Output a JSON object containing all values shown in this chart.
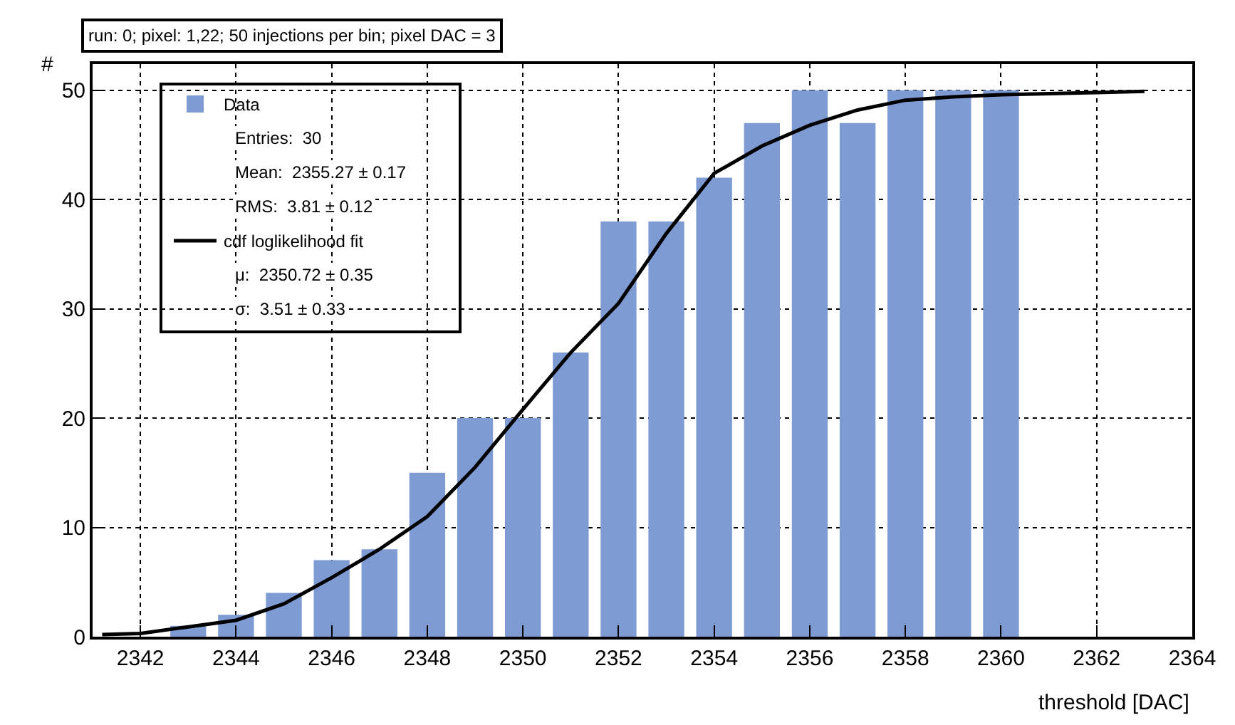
{
  "chart_data": {
    "type": "bar",
    "title": "run: 0; pixel: 1,22; 50 injections per bin; pixel DAC = 3",
    "xlabel": "threshold [DAC]",
    "ylabel": "#",
    "x": [
      2343,
      2344,
      2345,
      2346,
      2347,
      2348,
      2349,
      2350,
      2351,
      2352,
      2353,
      2354,
      2355,
      2356,
      2357,
      2358,
      2359,
      2360
    ],
    "series": [
      {
        "name": "Data",
        "color": "#7f9bd4",
        "values": [
          1,
          2,
          4,
          7,
          8,
          15,
          20,
          20,
          26,
          38,
          38,
          42,
          47,
          50,
          47,
          50,
          50,
          50
        ]
      },
      {
        "name": "cdf loglikelihood fit",
        "type": "line",
        "color": "#000000",
        "x": [
          2341.2,
          2342,
          2343,
          2344,
          2345,
          2346,
          2347,
          2348,
          2349,
          2350,
          2351,
          2352,
          2353,
          2354,
          2355,
          2356,
          2357,
          2358,
          2359,
          2360,
          2361,
          2362,
          2363
        ],
        "values": [
          0.2,
          0.3,
          0.9,
          1.5,
          3,
          5.4,
          8,
          11,
          15.5,
          20.8,
          26,
          30.5,
          36.9,
          42.4,
          44.9,
          46.8,
          48.2,
          49.1,
          49.4,
          49.6,
          49.7,
          49.8,
          49.9
        ]
      }
    ],
    "annotations": [
      "Entries:  30",
      "Mean:  2355.27 ± 0.17",
      "RMS:  3.81 ± 0.12",
      "μ:  2350.72 ± 0.35",
      "σ:  3.51 ± 0.33"
    ],
    "xlim": [
      2341,
      2364
    ],
    "xticks": [
      2342,
      2344,
      2346,
      2348,
      2350,
      2352,
      2354,
      2356,
      2358,
      2360,
      2362,
      2364
    ],
    "ylim": [
      0,
      52.4
    ],
    "yticks": [
      0,
      10,
      20,
      30,
      40,
      50
    ],
    "grid": true,
    "legend": "top left",
    "line_style": "solid"
  }
}
